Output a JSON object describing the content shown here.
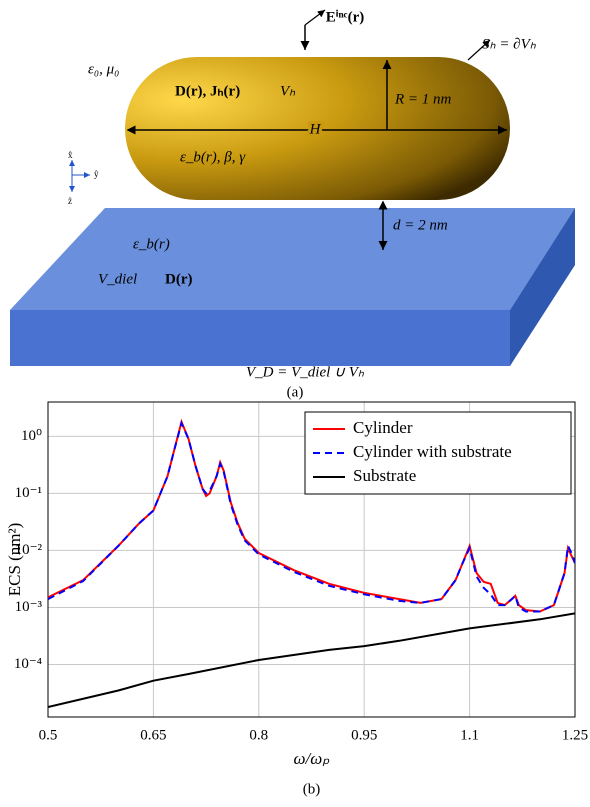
{
  "figure_a": {
    "e_inc": "Eⁱⁿᶜ(r)",
    "surface": "Sₕ = ∂Vₕ",
    "eps_mu": "ε₀, μ₀",
    "fields_h": "D(r), Jₕ(r)",
    "v_h": "Vₕ",
    "radius": "R = 1 nm",
    "length": "H",
    "material": "ε_b(r), β, γ",
    "axis_x": "x̂",
    "axis_y": "ŷ",
    "axis_z": "ẑ",
    "gap": "d = 2 nm",
    "eps_sub": "ε_b(r)",
    "v_diel": "V_diel",
    "d_sub": "D(r)",
    "domain": "V_D = V_diel ∪ Vₕ",
    "caption": "(a)"
  },
  "chart_data": {
    "type": "line",
    "caption": "(b)",
    "xlabel": "ω/ωₚ",
    "ylabel": "ECS (nm²)",
    "log_scale": true,
    "grid": true,
    "legend": "top-right",
    "xlim": [
      0.5,
      1.25
    ],
    "xticks": [
      0.5,
      0.65,
      0.8,
      0.95,
      1.1,
      1.25
    ],
    "ylim": [
      1.2e-05,
      4
    ],
    "yticks": [
      {
        "value": 0.0001,
        "label": "10⁻⁴"
      },
      {
        "value": 0.001,
        "label": "10⁻³"
      },
      {
        "value": 0.01,
        "label": "10⁻²"
      },
      {
        "value": 0.1,
        "label": "10⁻¹"
      },
      {
        "value": 1,
        "label": "10⁰"
      }
    ],
    "x": [
      0.5,
      0.55,
      0.6,
      0.63,
      0.65,
      0.67,
      0.68,
      0.69,
      0.7,
      0.71,
      0.72,
      0.725,
      0.73,
      0.74,
      0.745,
      0.75,
      0.76,
      0.77,
      0.78,
      0.8,
      0.85,
      0.9,
      0.95,
      1.0,
      1.03,
      1.06,
      1.08,
      1.09,
      1.1,
      1.11,
      1.12,
      1.13,
      1.14,
      1.15,
      1.16,
      1.165,
      1.17,
      1.18,
      1.2,
      1.22,
      1.235,
      1.24,
      1.245,
      1.25
    ],
    "series": [
      {
        "name": "Cylinder",
        "color": "#ff0000",
        "dash": false,
        "values": [
          0.0015,
          0.003,
          0.012,
          0.03,
          0.05,
          0.2,
          0.6,
          1.8,
          0.9,
          0.3,
          0.12,
          0.09,
          0.1,
          0.2,
          0.35,
          0.25,
          0.07,
          0.03,
          0.016,
          0.009,
          0.0045,
          0.0026,
          0.0018,
          0.0014,
          0.0012,
          0.0014,
          0.003,
          0.006,
          0.012,
          0.004,
          0.0028,
          0.0026,
          0.0012,
          0.0011,
          0.0014,
          0.0016,
          0.0011,
          0.0009,
          0.00085,
          0.0011,
          0.004,
          0.011,
          0.008,
          0.006
        ]
      },
      {
        "name": "Cylinder with substrate",
        "color": "#0000ff",
        "dash": true,
        "values": [
          0.0014,
          0.0029,
          0.012,
          0.03,
          0.05,
          0.2,
          0.6,
          1.7,
          0.9,
          0.3,
          0.12,
          0.1,
          0.11,
          0.2,
          0.33,
          0.24,
          0.065,
          0.028,
          0.015,
          0.0085,
          0.0042,
          0.0024,
          0.0017,
          0.0013,
          0.0012,
          0.0014,
          0.003,
          0.006,
          0.011,
          0.0035,
          0.0022,
          0.0017,
          0.0011,
          0.0011,
          0.0014,
          0.0016,
          0.001,
          0.00085,
          0.00085,
          0.0011,
          0.004,
          0.012,
          0.009,
          0.006
        ]
      },
      {
        "name": "Substrate",
        "color": "#000000",
        "dash": false,
        "x": [
          0.5,
          0.6,
          0.65,
          0.7,
          0.8,
          0.9,
          0.95,
          1.0,
          1.1,
          1.2,
          1.25
        ],
        "values": [
          1.8e-05,
          3.5e-05,
          5.2e-05,
          6.8e-05,
          0.00012,
          0.00018,
          0.00021,
          0.00026,
          0.00043,
          0.00062,
          0.00079
        ]
      }
    ]
  }
}
